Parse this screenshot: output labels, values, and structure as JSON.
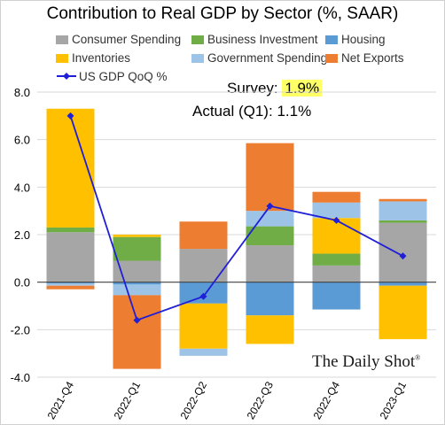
{
  "title": "Contribution to Real GDP by Sector (%, SAAR)",
  "annotation": {
    "survey_label": "Survey:",
    "survey_value": "1.9%",
    "actual_label": "Actual (Q1):",
    "actual_value": "1.1%"
  },
  "brand": {
    "name": "The Daily Shot",
    "mark": "®"
  },
  "chart_data": {
    "type": "bar",
    "stacked": true,
    "categories": [
      "2021-Q4",
      "2022-Q1",
      "2022-Q2",
      "2022-Q3",
      "2022-Q4",
      "2023-Q1"
    ],
    "ylim": [
      -4.0,
      8.0
    ],
    "yticks": [
      "8.0",
      "6.0",
      "4.0",
      "2.0",
      "0.0",
      "-2.0",
      "-4.0"
    ],
    "grid": true,
    "legend_position": "top",
    "series": [
      {
        "name": "Consumer Spending",
        "color": "#a6a6a6",
        "values": [
          2.1,
          0.9,
          1.4,
          1.55,
          0.7,
          2.5
        ]
      },
      {
        "name": "Business Investment",
        "color": "#70ad47",
        "values": [
          0.2,
          1.0,
          0.0,
          0.8,
          0.5,
          0.1
        ]
      },
      {
        "name": "Housing",
        "color": "#5b9bd5",
        "values": [
          -0.05,
          -0.1,
          -0.9,
          -1.4,
          -1.15,
          -0.15
        ]
      },
      {
        "name": "Inventories",
        "color": "#ffc000",
        "values": [
          5.0,
          0.1,
          -1.9,
          -1.2,
          1.5,
          -2.25
        ]
      },
      {
        "name": "Government Spending",
        "color": "#9dc3e6",
        "values": [
          -0.1,
          -0.45,
          -0.3,
          0.65,
          0.65,
          0.8
        ]
      },
      {
        "name": "Net Exports",
        "color": "#ed7d31",
        "values": [
          -0.15,
          -3.1,
          1.15,
          2.85,
          0.45,
          0.1
        ]
      }
    ],
    "line": {
      "name": "US GDP QoQ %",
      "color": "#1f1fd8",
      "values": [
        7.0,
        -1.6,
        -0.6,
        3.2,
        2.6,
        1.1
      ]
    }
  }
}
